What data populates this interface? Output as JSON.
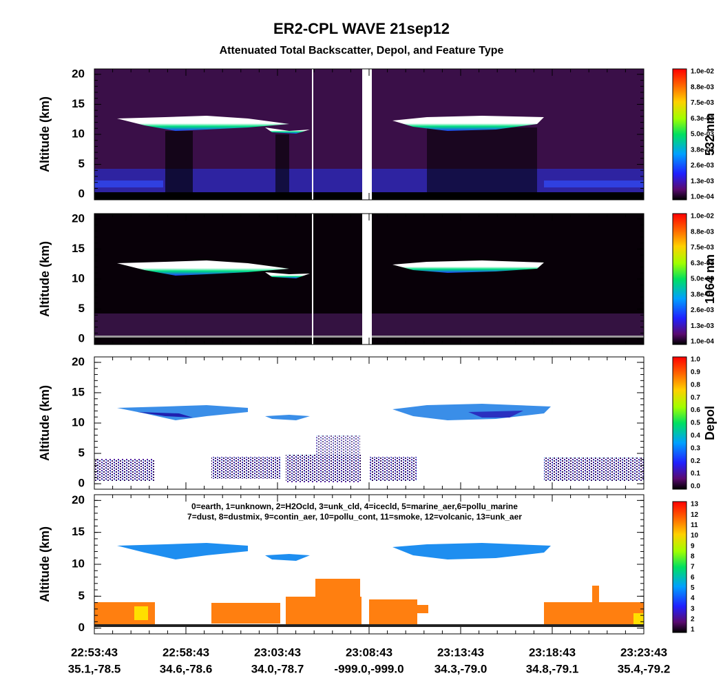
{
  "header": {
    "title": "ER2-CPL WAVE 21sep12",
    "subtitle": "Attenuated Total Backscatter, Depol, and Feature Type"
  },
  "x_axis": {
    "times": [
      "22:53:43",
      "22:58:43",
      "23:03:43",
      "23:08:43",
      "23:13:43",
      "23:18:43",
      "23:23:43"
    ],
    "positions": [
      "35.1,-78.5",
      "34.6,-78.6",
      "34.0,-78.7",
      "-999.0,-999.0",
      "34.3,-79.0",
      "34.8,-79.1",
      "35.4,-79.2"
    ]
  },
  "panels": [
    {
      "ylabel": "Altitude (km)",
      "ylim": [
        -0.9,
        20.9
      ],
      "yticks": [
        0,
        5,
        10,
        15,
        20
      ],
      "colorbar_label": "532 nm",
      "colorbar_ticks": [
        "1.0e-02",
        "8.8e-03",
        "7.5e-03",
        "6.3e-03",
        "5.0e-03",
        "3.8e-03",
        "2.6e-03",
        "1.3e-03",
        "1.0e-04"
      ]
    },
    {
      "ylabel": "Altitude (km)",
      "ylim": [
        -0.9,
        20.9
      ],
      "yticks": [
        0,
        5,
        10,
        15,
        20
      ],
      "colorbar_label": "1064 nm",
      "colorbar_ticks": [
        "1.0e-02",
        "8.8e-03",
        "7.5e-03",
        "6.3e-03",
        "5.0e-03",
        "3.8e-03",
        "2.6e-03",
        "1.3e-03",
        "1.0e-04"
      ]
    },
    {
      "ylabel": "Altitude (km)",
      "ylim": [
        -0.9,
        20.9
      ],
      "yticks": [
        0,
        5,
        10,
        15,
        20
      ],
      "colorbar_label": "Depol",
      "colorbar_ticks": [
        "1.0",
        "0.9",
        "0.8",
        "0.7",
        "0.6",
        "0.5",
        "0.4",
        "0.3",
        "0.2",
        "0.1",
        "0.0"
      ]
    },
    {
      "ylabel": "Altitude (km)",
      "ylim": [
        -0.9,
        20.9
      ],
      "yticks": [
        0,
        5,
        10,
        15,
        20
      ],
      "colorbar_ticks": [
        "13",
        "12",
        "11",
        "10",
        "9",
        "8",
        "7",
        "6",
        "5",
        "4",
        "3",
        "2",
        "1"
      ],
      "legend_lines": [
        "0=earth, 1=unknown, 2=H2Ocld, 3=unk_cld, 4=icecld, 5=marine_aer,6=pollu_marine",
        "7=dust, 8=dustmix, 9=contin_aer, 10=pollu_cont, 11=smoke, 12=volcanic, 13=unk_aer"
      ]
    }
  ]
}
